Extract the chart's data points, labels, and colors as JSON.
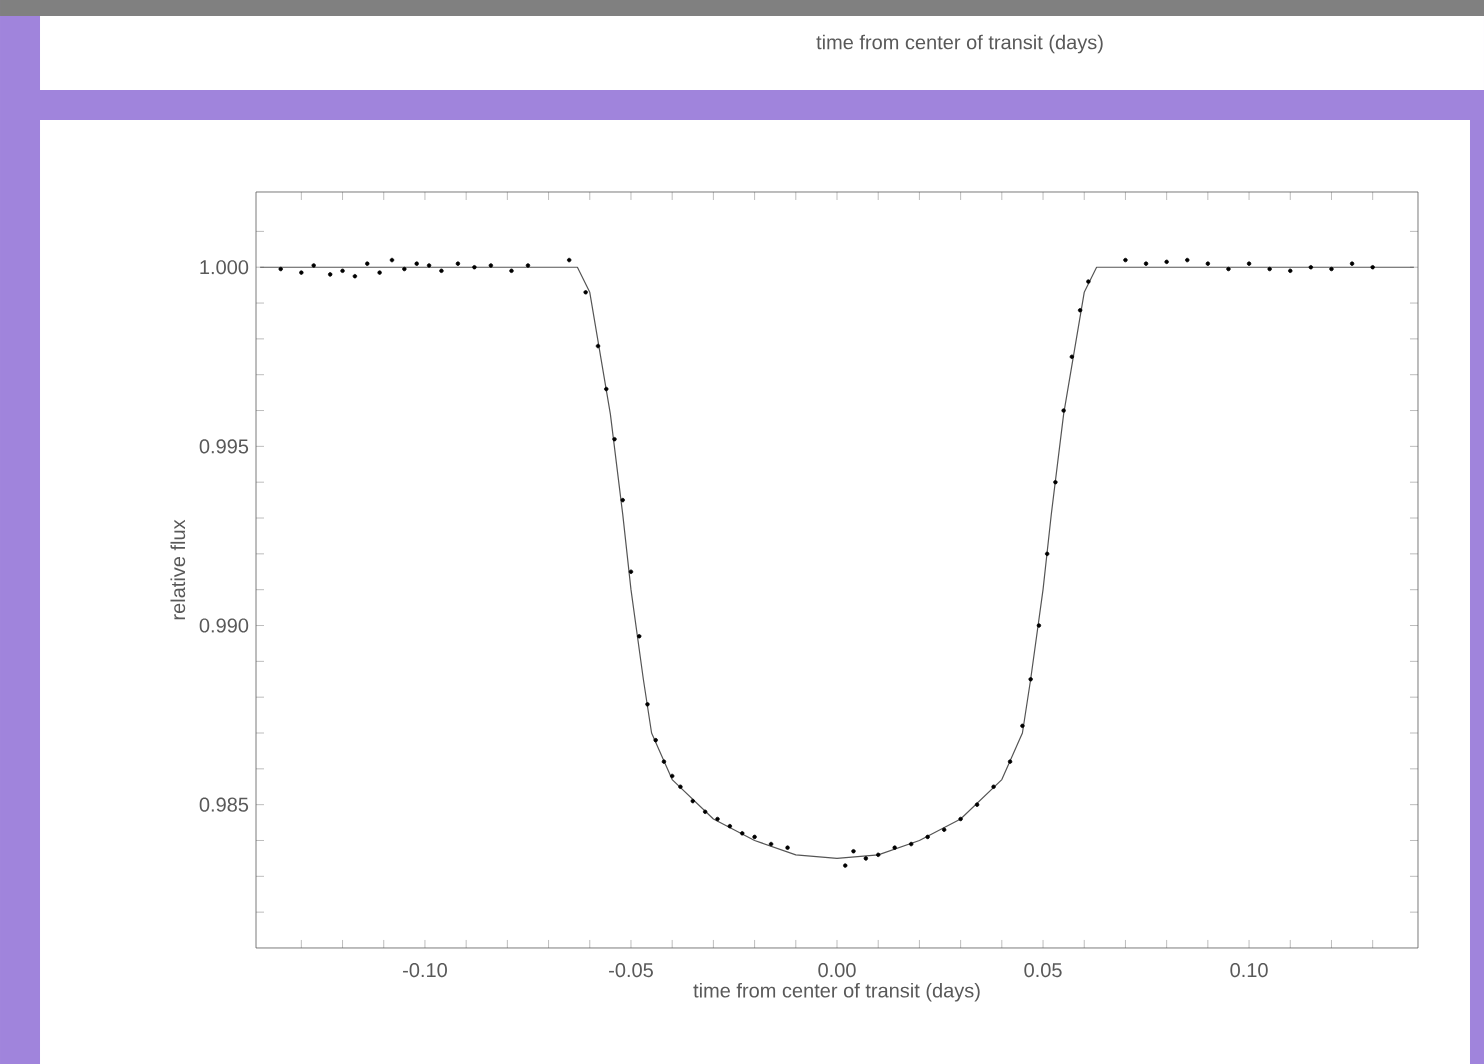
{
  "chart_data": {
    "type": "scatter",
    "xlabel": "time from center of transit (days)",
    "ylabel": "relative flux",
    "annotations": [
      "time from center of transit (days)"
    ],
    "xlim": [
      -0.141,
      0.141
    ],
    "ylim": [
      0.981,
      1.0021
    ],
    "xticks": [
      {
        "value": -0.13,
        "label": null
      },
      {
        "value": -0.12,
        "label": null
      },
      {
        "value": -0.11,
        "label": null
      },
      {
        "value": -0.1,
        "label": "-0.10"
      },
      {
        "value": -0.09,
        "label": null
      },
      {
        "value": -0.08,
        "label": null
      },
      {
        "value": -0.07,
        "label": null
      },
      {
        "value": -0.06,
        "label": null
      },
      {
        "value": -0.05,
        "label": "-0.05"
      },
      {
        "value": -0.04,
        "label": null
      },
      {
        "value": -0.03,
        "label": null
      },
      {
        "value": -0.02,
        "label": null
      },
      {
        "value": -0.01,
        "label": null
      },
      {
        "value": 0,
        "label": "0.00"
      },
      {
        "value": 0.01,
        "label": null
      },
      {
        "value": 0.02,
        "label": null
      },
      {
        "value": 0.03,
        "label": null
      },
      {
        "value": 0.04,
        "label": null
      },
      {
        "value": 0.05,
        "label": "0.05"
      },
      {
        "value": 0.06,
        "label": null
      },
      {
        "value": 0.07,
        "label": null
      },
      {
        "value": 0.08,
        "label": null
      },
      {
        "value": 0.09,
        "label": null
      },
      {
        "value": 0.1,
        "label": "0.10"
      },
      {
        "value": 0.11,
        "label": null
      },
      {
        "value": 0.12,
        "label": null
      },
      {
        "value": 0.13,
        "label": null
      }
    ],
    "yticks": [
      {
        "value": 0.982,
        "label": null
      },
      {
        "value": 0.983,
        "label": null
      },
      {
        "value": 0.984,
        "label": null
      },
      {
        "value": 0.985,
        "label": "0.985"
      },
      {
        "value": 0.986,
        "label": null
      },
      {
        "value": 0.987,
        "label": null
      },
      {
        "value": 0.988,
        "label": null
      },
      {
        "value": 0.989,
        "label": null
      },
      {
        "value": 0.99,
        "label": "0.990"
      },
      {
        "value": 0.991,
        "label": null
      },
      {
        "value": 0.992,
        "label": null
      },
      {
        "value": 0.993,
        "label": null
      },
      {
        "value": 0.994,
        "label": null
      },
      {
        "value": 0.995,
        "label": "0.995"
      },
      {
        "value": 0.996,
        "label": null
      },
      {
        "value": 0.997,
        "label": null
      },
      {
        "value": 0.998,
        "label": null
      },
      {
        "value": 0.999,
        "label": null
      },
      {
        "value": 1.0,
        "label": "1.000"
      },
      {
        "value": 1.001,
        "label": null
      }
    ],
    "grid": false,
    "series": [
      {
        "marker": "circle",
        "color": "#000000",
        "x": [
          -0.135,
          -0.13,
          -0.127,
          -0.123,
          -0.12,
          -0.117,
          -0.114,
          -0.111,
          -0.108,
          -0.105,
          -0.102,
          -0.099,
          -0.096,
          -0.092,
          -0.088,
          -0.084,
          -0.079,
          -0.075,
          -0.065,
          -0.061,
          -0.058,
          -0.056,
          -0.054,
          -0.052,
          -0.05,
          -0.048,
          -0.046,
          -0.044,
          -0.042,
          -0.04,
          -0.038,
          -0.035,
          -0.032,
          -0.029,
          -0.026,
          -0.023,
          -0.02,
          -0.016,
          -0.012,
          0.002,
          0.004,
          0.007,
          0.01,
          0.014,
          0.018,
          0.022,
          0.026,
          0.03,
          0.034,
          0.038,
          0.042,
          0.045,
          0.047,
          0.049,
          0.051,
          0.053,
          0.055,
          0.057,
          0.059,
          0.061,
          0.07,
          0.075,
          0.08,
          0.085,
          0.09,
          0.095,
          0.1,
          0.105,
          0.11,
          0.115,
          0.12,
          0.125,
          0.13
        ],
        "values": [
          0.99995,
          0.99985,
          1.00005,
          0.9998,
          0.9999,
          0.99975,
          1.0001,
          0.99985,
          1.0002,
          0.99995,
          1.0001,
          1.00005,
          0.9999,
          1.0001,
          1.0,
          1.00005,
          0.9999,
          1.00005,
          1.0002,
          0.9993,
          0.9978,
          0.9966,
          0.9952,
          0.9935,
          0.9915,
          0.9897,
          0.9878,
          0.9868,
          0.9862,
          0.9858,
          0.9855,
          0.9851,
          0.9848,
          0.9846,
          0.9844,
          0.9842,
          0.9841,
          0.9839,
          0.9838,
          0.9833,
          0.9837,
          0.9835,
          0.9836,
          0.9838,
          0.9839,
          0.9841,
          0.9843,
          0.9846,
          0.985,
          0.9855,
          0.9862,
          0.9872,
          0.9885,
          0.99,
          0.992,
          0.994,
          0.996,
          0.9975,
          0.9988,
          0.9996,
          1.0002,
          1.0001,
          1.00015,
          1.0002,
          1.0001,
          0.99995,
          1.0001,
          0.99995,
          0.9999,
          1.0,
          0.99995,
          1.0001,
          1.0
        ]
      },
      {
        "type": "line",
        "marker": "none",
        "line_style": "solid",
        "color": "#555555",
        "x": [
          -0.14,
          -0.063,
          -0.06,
          -0.055,
          -0.052,
          -0.05,
          -0.047,
          -0.045,
          -0.04,
          -0.03,
          -0.02,
          -0.01,
          0.0,
          0.01,
          0.02,
          0.03,
          0.04,
          0.045,
          0.047,
          0.05,
          0.052,
          0.055,
          0.06,
          0.063,
          0.14
        ],
        "values": [
          1.0,
          1.0,
          0.9993,
          0.9959,
          0.9931,
          0.991,
          0.9885,
          0.987,
          0.9857,
          0.9846,
          0.984,
          0.9836,
          0.9835,
          0.9836,
          0.984,
          0.9846,
          0.9857,
          0.987,
          0.9885,
          0.991,
          0.9931,
          0.9959,
          0.9993,
          1.0,
          1.0
        ]
      }
    ]
  }
}
